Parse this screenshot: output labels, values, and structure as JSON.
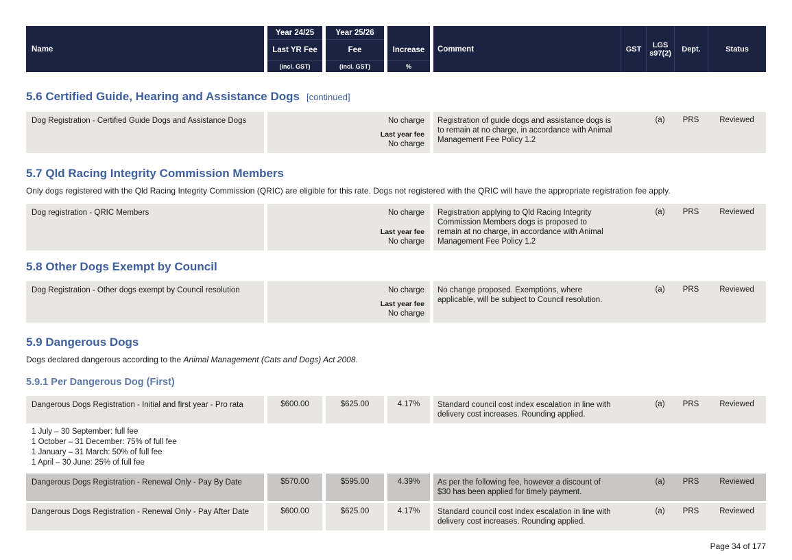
{
  "colors": {
    "header_navy": "#1a2342",
    "header_separator": "#31395c",
    "heading_blue": "#3e5f9b",
    "subheading_blue": "#5b79a8",
    "row_gray": "#e8e6e3",
    "row_gray_dark": "#c9c7c5"
  },
  "table_header": {
    "name": "Name",
    "last_yr": {
      "year": "Year 24/25",
      "label": "Last YR Fee",
      "gst_note": "(incl. GST)"
    },
    "fee": {
      "year": "Year 25/26",
      "label": "Fee",
      "gst_note": "(incl. GST)"
    },
    "increase": {
      "label": "Increase",
      "unit": "%"
    },
    "comment": "Comment",
    "gst": "GST",
    "lgs": "LGS s97(2)",
    "dept": "Dept.",
    "status": "Status"
  },
  "sections": [
    {
      "title": "5.6 Certified Guide, Hearing and Assistance Dogs",
      "continued": "[continued]",
      "rows": [
        {
          "name": "Dog Registration - Certified Guide Dogs and Assistance Dogs",
          "fee": "No charge",
          "last_year_fee_label": "Last year fee",
          "last_fee": "No charge",
          "comment": "Registration of guide dogs and assistance dogs is to remain at no charge, in accordance with Animal Management Fee Policy 1.2",
          "gst": "",
          "lgs": "(a)",
          "dept": "PRS",
          "status": "Reviewed"
        }
      ]
    },
    {
      "title": "5.7 Qld Racing Integrity Commission Members",
      "intro": "Only dogs registered with the Qld Racing Integrity Commission (QRIC) are eligible for this rate. Dogs not registered with the QRIC will have the appropriate registration fee apply.",
      "rows": [
        {
          "name": "Dog registration - QRIC Members",
          "fee": "No charge",
          "last_year_fee_label": "Last year fee",
          "last_fee": "No charge",
          "comment": "Registration applying to Qld Racing Integrity Commission Members dogs is proposed to remain at no charge, in accordance with Animal Management Fee Policy 1.2",
          "gst": "",
          "lgs": "(a)",
          "dept": "PRS",
          "status": "Reviewed"
        }
      ]
    },
    {
      "title": "5.8 Other Dogs Exempt by Council",
      "rows": [
        {
          "name": "Dog Registration - Other dogs exempt by Council resolution",
          "fee": "No charge",
          "last_year_fee_label": "Last year fee",
          "last_fee": "No charge",
          "comment": "No change proposed. Exemptions, where applicable, will be subject to Council resolution.",
          "gst": "",
          "lgs": "(a)",
          "dept": "PRS",
          "status": "Reviewed"
        }
      ]
    },
    {
      "title": "5.9 Dangerous Dogs",
      "intro_prefix": "Dogs declared dangerous according to the ",
      "intro_italic": "Animal Management (Cats and Dogs) Act 2008",
      "intro_suffix": ".",
      "subsection": "5.9.1 Per Dangerous Dog (First)",
      "rows": [
        {
          "name": "Dangerous Dogs Registration - Initial and first year - Pro rata",
          "last_fee": "$600.00",
          "fee": "$625.00",
          "increase": "4.17%",
          "comment": "Standard council cost index escalation in line with delivery cost increases. Rounding applied.",
          "gst": "",
          "lgs": "(a)",
          "dept": "PRS",
          "status": "Reviewed",
          "note_lines": [
            "1 July – 30 September: full fee",
            "1 October – 31 December: 75% of full fee",
            "1 January – 31 March: 50% of full fee",
            "1 April – 30 June: 25% of full fee"
          ]
        },
        {
          "name": "Dangerous Dogs Registration - Renewal Only - Pay By Date",
          "last_fee": "$570.00",
          "fee": "$595.00",
          "increase": "4.39%",
          "comment": "As per the following fee, however a discount of $30 has been applied for timely payment.",
          "gst": "",
          "lgs": "(a)",
          "dept": "PRS",
          "status": "Reviewed"
        },
        {
          "name": "Dangerous Dogs Registration - Renewal Only - Pay After Date",
          "last_fee": "$600.00",
          "fee": "$625.00",
          "increase": "4.17%",
          "comment": "Standard council cost index escalation in line with delivery cost increases. Rounding applied.",
          "gst": "",
          "lgs": "(a)",
          "dept": "PRS",
          "status": "Reviewed"
        }
      ]
    }
  ],
  "footer": {
    "page_label": "Page 34 of 177"
  }
}
